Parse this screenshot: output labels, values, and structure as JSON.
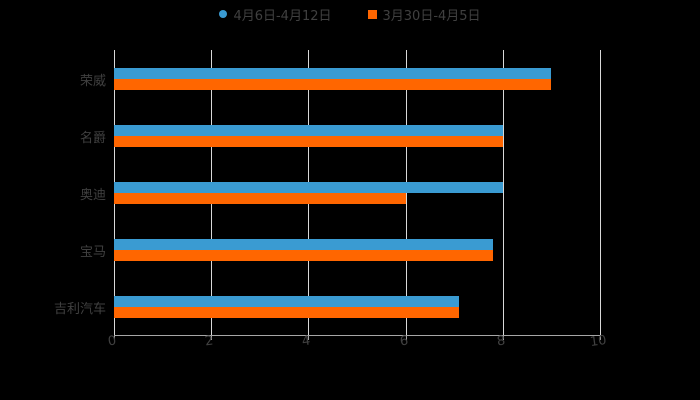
{
  "chart_data": {
    "type": "bar",
    "orientation": "horizontal",
    "title": "",
    "xlabel": "",
    "ylabel": "",
    "xlim": [
      0,
      10
    ],
    "x_ticks": [
      "0",
      "2",
      "4",
      "6",
      "8",
      "10"
    ],
    "categories": [
      "荣威",
      "名爵",
      "奥迪",
      "宝马",
      "吉利汽车"
    ],
    "series": [
      {
        "name": "4月6日-4月12日",
        "color": "#3a9bd2",
        "marker": "circle",
        "values": [
          9.0,
          8.0,
          8.0,
          7.8,
          7.1
        ]
      },
      {
        "name": "3月30日-4月5日",
        "color": "#ff6600",
        "marker": "square",
        "values": [
          9.0,
          8.0,
          6.0,
          7.8,
          7.1
        ]
      }
    ],
    "grid": "vertical",
    "legend_position": "top"
  },
  "legend": {
    "items": [
      {
        "label": "4月6日-4月12日",
        "color": "#3a9bd2"
      },
      {
        "label": "3月30日-4月5日",
        "color": "#ff6600"
      }
    ]
  },
  "colors": {
    "background": "#000000",
    "grid": "#d9d9d9",
    "text": "#404040"
  }
}
